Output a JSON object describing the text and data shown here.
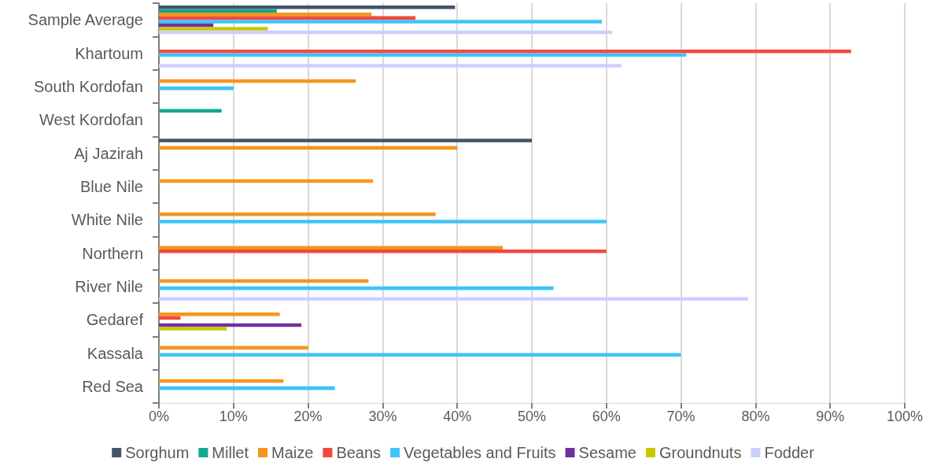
{
  "chart_data": {
    "type": "bar",
    "orientation": "horizontal",
    "categories": [
      "Sample Average",
      "Khartoum",
      "South Kordofan",
      "West Kordofan",
      "Aj Jazirah",
      "Blue Nile",
      "White Nile",
      "Northern",
      "River Nile",
      "Gedaref",
      "Kassala",
      "Red Sea"
    ],
    "series": [
      {
        "name": "Sorghum",
        "color": "#44546a",
        "values": [
          39.7,
          null,
          null,
          null,
          50,
          null,
          null,
          null,
          null,
          null,
          null,
          null
        ]
      },
      {
        "name": "Millet",
        "color": "#12a890",
        "values": [
          15.8,
          null,
          null,
          8.4,
          null,
          null,
          null,
          null,
          null,
          null,
          null,
          null
        ]
      },
      {
        "name": "Maize",
        "color": "#f7941d",
        "values": [
          28.5,
          null,
          26.4,
          null,
          40,
          28.7,
          37.1,
          46.1,
          28.1,
          16.2,
          20,
          16.7
        ]
      },
      {
        "name": "Beans",
        "color": "#f04a3e",
        "values": [
          34.4,
          92.8,
          null,
          null,
          null,
          null,
          null,
          60,
          null,
          2.9,
          null,
          null
        ]
      },
      {
        "name": "Vegetables and Fruits",
        "color": "#3fc4f7",
        "values": [
          59.4,
          70.7,
          10,
          null,
          null,
          null,
          60,
          null,
          52.9,
          null,
          70,
          23.6
        ]
      },
      {
        "name": "Sesame",
        "color": "#7030a0",
        "values": [
          7.3,
          null,
          null,
          null,
          null,
          null,
          null,
          null,
          null,
          19.1,
          null,
          null
        ]
      },
      {
        "name": "Groundnuts",
        "color": "#c8c800",
        "values": [
          14.6,
          null,
          null,
          null,
          null,
          null,
          null,
          null,
          null,
          9.1,
          null,
          null
        ]
      },
      {
        "name": "Fodder",
        "color": "#cccfff",
        "values": [
          60.8,
          62,
          null,
          null,
          null,
          null,
          null,
          null,
          79,
          null,
          null,
          null
        ]
      }
    ],
    "xlim": [
      0,
      100
    ],
    "xticks": [
      {
        "value": 0,
        "label": "0%"
      },
      {
        "value": 10,
        "label": "10%"
      },
      {
        "value": 20,
        "label": "20%"
      },
      {
        "value": 30,
        "label": "30%"
      },
      {
        "value": 40,
        "label": "40%"
      },
      {
        "value": 50,
        "label": "50%"
      },
      {
        "value": 60,
        "label": "60%"
      },
      {
        "value": 70,
        "label": "70%"
      },
      {
        "value": 80,
        "label": "80%"
      },
      {
        "value": 90,
        "label": "90%"
      },
      {
        "value": 100,
        "label": "100%"
      }
    ],
    "grid": "x",
    "legend": "bottom"
  }
}
